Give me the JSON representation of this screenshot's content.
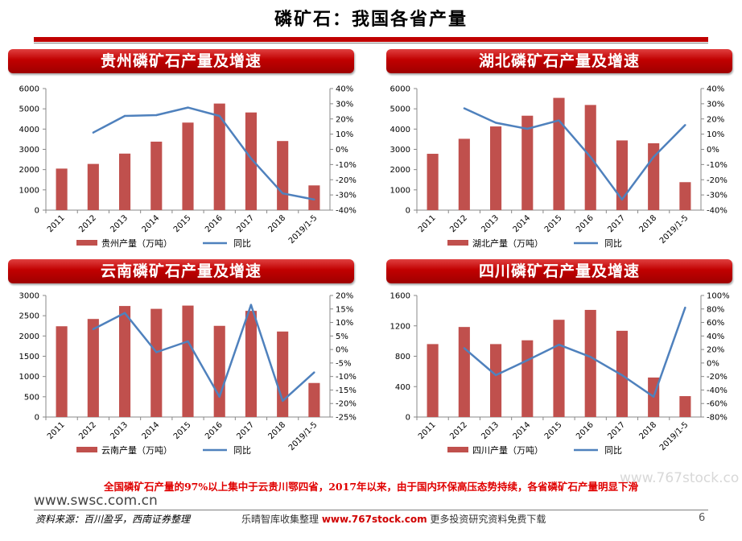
{
  "page": {
    "title": "磷矿石：我国各省产量",
    "conclusion": "全国磷矿石产量的97%以上集中于云贵川鄂四省，2017年以来，由于国内环保高压态势持续，各省磷矿石产量明显下滑",
    "watermark_top": "www.767stock.co",
    "site_url": "www.swsc.com.cn",
    "source": "资料来源：百川盈孚，西南证券整理",
    "footer_watermark_prefix": "乐晴智库收集整理",
    "footer_watermark_site": "www.767stock.com",
    "footer_watermark_suffix": "更多投资研究资料免费下载",
    "page_number": "6"
  },
  "colors": {
    "bar": "#c0504d",
    "line": "#4f81bd",
    "banner": "#c00000",
    "conclusion": "#e00000"
  },
  "chart_data": [
    {
      "id": "guizhou",
      "type": "bar",
      "title": "贵州磷矿石产量及增速",
      "categories": [
        "2011",
        "2012",
        "2013",
        "2014",
        "2015",
        "2016",
        "2017",
        "2018",
        "2019/1-5"
      ],
      "series": [
        {
          "name": "贵州产量（万吨）",
          "type": "bar",
          "axis": "left",
          "values": [
            2050,
            2280,
            2790,
            3380,
            4320,
            5260,
            4820,
            3410,
            1220
          ]
        },
        {
          "name": "同比",
          "type": "line",
          "axis": "right",
          "values": [
            null,
            11,
            22,
            22.5,
            27.5,
            22,
            -6,
            -29,
            -33
          ]
        }
      ],
      "ylim": [
        0,
        6000
      ],
      "yticks": [
        0,
        1000,
        2000,
        3000,
        4000,
        5000,
        6000
      ],
      "y2lim": [
        -40,
        40
      ],
      "y2ticks": [
        -40,
        -30,
        -20,
        -10,
        0,
        10,
        20,
        30,
        40
      ],
      "y2format": "percent",
      "legend": "bottom"
    },
    {
      "id": "hubei",
      "type": "bar",
      "title": "湖北磷矿石产量及增速",
      "categories": [
        "2011",
        "2012",
        "2013",
        "2014",
        "2015",
        "2016",
        "2017",
        "2018",
        "2019/1-5"
      ],
      "series": [
        {
          "name": "湖北产量（万吨）",
          "type": "bar",
          "axis": "left",
          "values": [
            2780,
            3520,
            4130,
            4660,
            5540,
            5190,
            3440,
            3300,
            1380
          ]
        },
        {
          "name": "同比",
          "type": "line",
          "axis": "right",
          "values": [
            null,
            27,
            17.5,
            13.5,
            19,
            -5,
            -33,
            -5,
            16
          ]
        }
      ],
      "ylim": [
        0,
        6000
      ],
      "yticks": [
        0,
        1000,
        2000,
        3000,
        4000,
        5000,
        6000
      ],
      "y2lim": [
        -40,
        40
      ],
      "y2ticks": [
        -40,
        -30,
        -20,
        -10,
        0,
        10,
        20,
        30,
        40
      ],
      "y2format": "percent",
      "legend": "bottom"
    },
    {
      "id": "yunnan",
      "type": "bar",
      "title": "云南磷矿石产量及增速",
      "categories": [
        "2011",
        "2012",
        "2013",
        "2014",
        "2015",
        "2016",
        "2017",
        "2018",
        "2019/1-5"
      ],
      "series": [
        {
          "name": "云南产量（万吨）",
          "type": "bar",
          "axis": "left",
          "values": [
            2240,
            2420,
            2740,
            2670,
            2750,
            2250,
            2620,
            2110,
            840
          ]
        },
        {
          "name": "同比",
          "type": "line",
          "axis": "right",
          "values": [
            null,
            7.5,
            13.5,
            -1,
            3,
            -17.5,
            16.5,
            -19,
            -8.5
          ]
        }
      ],
      "ylim": [
        0,
        3000
      ],
      "yticks": [
        0,
        500,
        1000,
        1500,
        2000,
        2500,
        3000
      ],
      "y2lim": [
        -25,
        20
      ],
      "y2ticks": [
        -25,
        -20,
        -15,
        -10,
        -5,
        0,
        5,
        10,
        15,
        20
      ],
      "y2format": "percent",
      "legend": "bottom"
    },
    {
      "id": "sichuan",
      "type": "bar",
      "title": "四川磷矿石产量及增速",
      "categories": [
        "2011",
        "2012",
        "2013",
        "2014",
        "2015",
        "2016",
        "2017",
        "2018",
        "2019/1-5"
      ],
      "series": [
        {
          "name": "四川产量（万吨）",
          "type": "bar",
          "axis": "left",
          "values": [
            960,
            1185,
            960,
            1010,
            1280,
            1410,
            1135,
            520,
            275
          ]
        },
        {
          "name": "同比",
          "type": "line",
          "axis": "right",
          "values": [
            null,
            22,
            -18,
            4,
            27,
            9,
            -18,
            -50,
            82
          ]
        }
      ],
      "ylim": [
        0,
        1600
      ],
      "yticks": [
        0,
        400,
        800,
        1200,
        1600
      ],
      "y2lim": [
        -80,
        100
      ],
      "y2ticks": [
        -80,
        -60,
        -40,
        -20,
        0,
        20,
        40,
        60,
        80,
        100
      ],
      "y2format": "percent",
      "legend": "bottom"
    }
  ]
}
